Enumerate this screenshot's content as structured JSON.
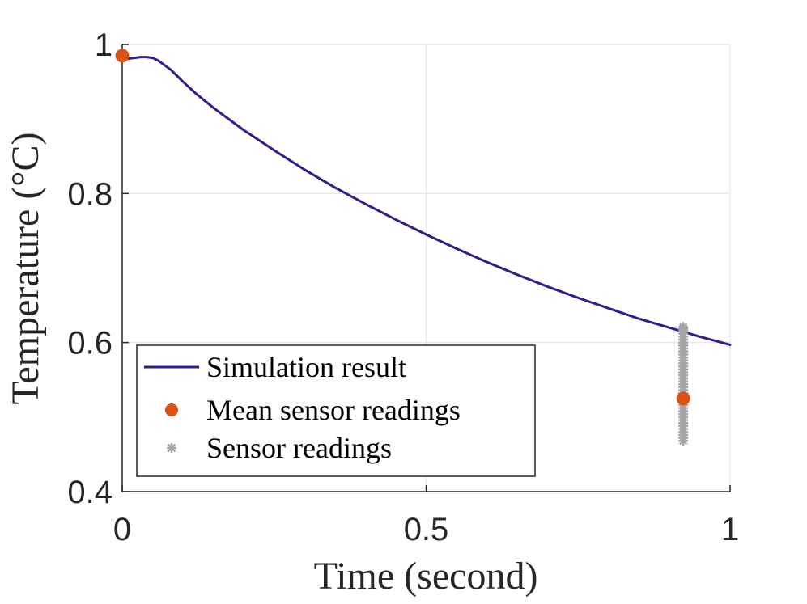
{
  "chart_data": {
    "type": "line",
    "title": "",
    "xlabel": "Time (second)",
    "ylabel": "Temperature (°C)",
    "xlim": [
      0,
      1
    ],
    "ylim": [
      0.4,
      1.0
    ],
    "xticks": [
      0,
      0.5,
      1
    ],
    "xtick_labels": [
      "0",
      "0.5",
      "1"
    ],
    "yticks": [
      0.4,
      0.6,
      0.8,
      1.0
    ],
    "ytick_labels": [
      "0.4",
      "0.6",
      "0.8",
      "1"
    ],
    "grid": true,
    "legend_position": "bottom-left",
    "colors": {
      "simulation": "#2e1f8c",
      "mean": "#d95319",
      "sensor": "#a6a6a6",
      "grid": "#e6e6e6",
      "axis": "#262626"
    },
    "series": [
      {
        "name": "Simulation result",
        "kind": "line",
        "x": [
          0,
          0.01,
          0.02,
          0.03,
          0.04,
          0.05,
          0.06,
          0.08,
          0.1,
          0.12,
          0.15,
          0.2,
          0.25,
          0.3,
          0.35,
          0.4,
          0.45,
          0.5,
          0.55,
          0.6,
          0.65,
          0.7,
          0.75,
          0.8,
          0.85,
          0.9,
          0.95,
          1.0
        ],
        "y": [
          0.98,
          0.981,
          0.982,
          0.983,
          0.983,
          0.982,
          0.978,
          0.966,
          0.95,
          0.935,
          0.915,
          0.885,
          0.858,
          0.832,
          0.808,
          0.786,
          0.765,
          0.745,
          0.726,
          0.708,
          0.691,
          0.675,
          0.66,
          0.646,
          0.632,
          0.62,
          0.608,
          0.597
        ]
      },
      {
        "name": "Mean sensor readings",
        "kind": "points",
        "x": [
          0,
          0.923
        ],
        "y": [
          0.985,
          0.525
        ]
      },
      {
        "name": "Sensor readings",
        "kind": "scatter",
        "x": [
          0.923,
          0.923,
          0.923,
          0.923,
          0.923,
          0.923,
          0.923,
          0.923,
          0.923,
          0.923,
          0.923,
          0.923,
          0.923,
          0.923,
          0.923,
          0.923,
          0.923,
          0.923,
          0.923,
          0.923,
          0.923,
          0.923,
          0.923,
          0.923,
          0.923,
          0.923,
          0.923,
          0.923,
          0.923,
          0.923,
          0.923,
          0.923,
          0.923,
          0.923,
          0.923,
          0.923,
          0.923,
          0.923,
          0.923,
          0.923
        ],
        "y": [
          0.468,
          0.472,
          0.476,
          0.48,
          0.484,
          0.488,
          0.492,
          0.496,
          0.5,
          0.504,
          0.508,
          0.512,
          0.516,
          0.52,
          0.524,
          0.528,
          0.532,
          0.536,
          0.54,
          0.544,
          0.548,
          0.552,
          0.556,
          0.56,
          0.564,
          0.568,
          0.572,
          0.576,
          0.58,
          0.584,
          0.588,
          0.592,
          0.596,
          0.6,
          0.604,
          0.608,
          0.612,
          0.616,
          0.619,
          0.621
        ]
      }
    ]
  }
}
